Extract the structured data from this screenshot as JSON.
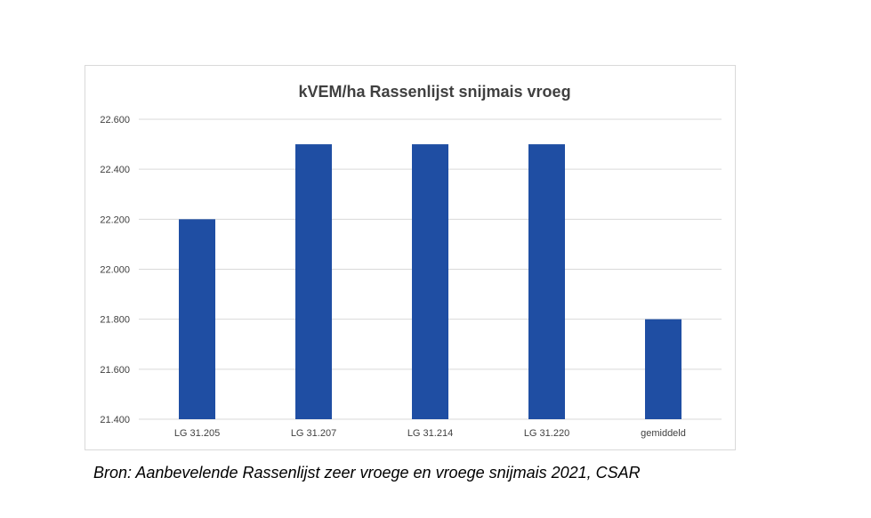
{
  "chart_data": {
    "type": "bar",
    "title": "kVEM/ha Rassenlijst snijmais vroeg",
    "categories": [
      "LG 31.205",
      "LG 31.207",
      "LG 31.214",
      "LG 31.220",
      "gemiddeld"
    ],
    "values": [
      22200,
      22500,
      22500,
      22500,
      21800
    ],
    "ylim": [
      21400,
      22600
    ],
    "yticks": [
      21400,
      21600,
      21800,
      22000,
      22200,
      22400,
      22600
    ],
    "ytick_labels": [
      "21.400",
      "21.600",
      "21.800",
      "22.000",
      "22.200",
      "22.400",
      "22.600"
    ],
    "xlabel": "",
    "ylabel": "",
    "grid": true,
    "bar_color": "#1f4ea3",
    "grid_color": "#d9d9d9"
  },
  "source_note": "Bron: Aanbevelende Rassenlijst zeer vroege en vroege snijmais 2021, CSAR"
}
